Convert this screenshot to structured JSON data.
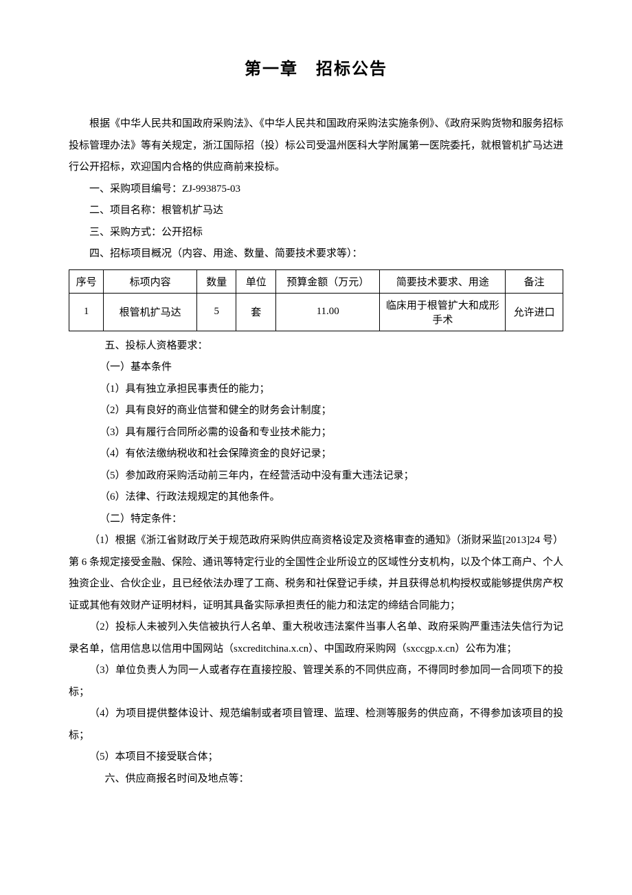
{
  "title": "第一章　招标公告",
  "intro": "根据《中华人民共和国政府采购法》、《中华人民共和国政府采购法实施条例》、《政府采购货物和服务招标投标管理办法》等有关规定，浙江国际招（投）标公司受温州医科大学附属第一医院委托，就根管机扩马达进行公开招标，欢迎国内合格的供应商前来投标。",
  "line1": "一、采购项目编号：ZJ-993875-03",
  "line2": "二、项目名称：根管机扩马达",
  "line3": "三、采购方式：公开招标",
  "line4": "四、招标项目概况（内容、用途、数量、简要技术要求等）：",
  "table": {
    "headers": {
      "seq": "序号",
      "content": "标项内容",
      "qty": "数量",
      "unit": "单位",
      "budget": "预算金额（万元）",
      "req": "简要技术要求、用途",
      "remark": "备注"
    },
    "rows": [
      {
        "seq": "1",
        "content": "根管机扩马达",
        "qty": "5",
        "unit": "套",
        "budget": "11.00",
        "req": "临床用于根管扩大和成形手术",
        "remark": "允许进口"
      }
    ]
  },
  "line5": "五、投标人资格要求：",
  "section5_1_title": "（一）基本条件",
  "section5_1_items": [
    "（1）具有独立承担民事责任的能力；",
    "（2）具有良好的商业信誉和健全的财务会计制度；",
    "（3）具有履行合同所必需的设备和专业技术能力；",
    "（4）有依法缴纳税收和社会保障资金的良好记录；",
    "（5）参加政府采购活动前三年内，在经营活动中没有重大违法记录；",
    "（6）法律、行政法规规定的其他条件。"
  ],
  "section5_2_title": "（二）特定条件：",
  "section5_2_items": [
    "（1）根据《浙江省财政厅关于规范政府采购供应商资格设定及资格审查的通知》（浙财采监[2013]24 号）第 6 条规定接受金融、保险、通讯等特定行业的全国性企业所设立的区域性分支机构，以及个体工商户、个人独资企业、合伙企业，且已经依法办理了工商、税务和社保登记手续，并且获得总机构授权或能够提供房产权证或其他有效财产证明材料，证明其具备实际承担责任的能力和法定的缔结合同能力；",
    "（2）投标人未被列入失信被执行人名单、重大税收违法案件当事人名单、政府采购严重违法失信行为记录名单，信用信息以信用中国网站（sxcreditchina.x.cn）、中国政府采购网（sxccgp.x.cn）公布为准；",
    "（3）单位负责人为同一人或者存在直接控股、管理关系的不同供应商，不得同时参加同一合同项下的投标；",
    "（4）为项目提供整体设计、规范编制或者项目管理、监理、检测等服务的供应商，不得参加该项目的投标；",
    "（5）本项目不接受联合体；"
  ],
  "line6": "六、供应商报名时间及地点等："
}
